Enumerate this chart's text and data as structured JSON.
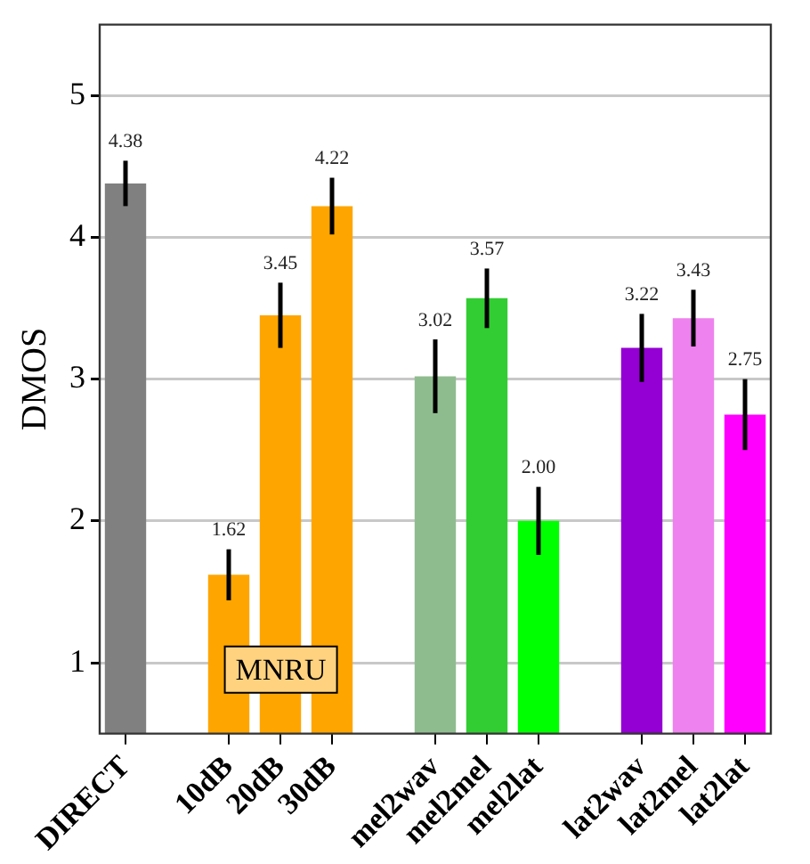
{
  "chart_data": {
    "type": "bar",
    "ylabel": "DMOS",
    "categories": [
      "DIRECT",
      null,
      "10dB",
      "20dB",
      "30dB",
      null,
      "mel2wav",
      "mel2mel",
      "mel2lat",
      null,
      "lat2wav",
      "lat2mel",
      "lat2lat"
    ],
    "values": [
      4.38,
      null,
      1.62,
      3.45,
      4.22,
      null,
      3.02,
      3.57,
      2.0,
      null,
      3.22,
      3.43,
      2.75
    ],
    "colors": [
      "#808080",
      null,
      "#ffa500",
      "#ffa500",
      "#ffa500",
      null,
      "#8fbc8f",
      "#32cd32",
      "#00ff00",
      null,
      "#9400d3",
      "#ee82ee",
      "#ff00ff"
    ],
    "errors": [
      0.16,
      null,
      0.18,
      0.23,
      0.2,
      null,
      0.26,
      0.21,
      0.24,
      null,
      0.24,
      0.2,
      0.25
    ],
    "value_labels": [
      "4.38",
      null,
      "1.62",
      "3.45",
      "4.22",
      null,
      "3.02",
      "3.57",
      "2.00",
      null,
      "3.22",
      "3.43",
      "2.75"
    ],
    "annotations": [
      "MNRU"
    ],
    "ylim": [
      0.5,
      5.5
    ],
    "yticks": [
      1,
      2,
      3,
      4,
      5
    ],
    "grid": "y",
    "legend": false
  }
}
